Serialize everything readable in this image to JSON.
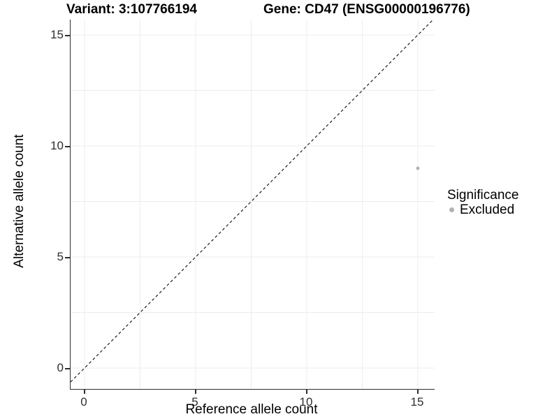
{
  "titles": {
    "variant": "Variant: 3:107766194",
    "gene": "Gene: CD47 (ENSG00000196776)"
  },
  "chart_data": {
    "type": "scatter",
    "xlabel": "Reference allele count",
    "ylabel": "Alternative allele count",
    "xlim": [
      -0.75,
      15.75
    ],
    "ylim": [
      -0.75,
      15.75
    ],
    "x_ticks": [
      0,
      5,
      10,
      15
    ],
    "y_ticks": [
      0,
      5,
      10,
      15
    ],
    "grid": true,
    "grid_step": 2.5,
    "points": [
      {
        "x": 15,
        "y": 9,
        "series": "Excluded"
      }
    ],
    "reference_line": {
      "slope": 1,
      "intercept": 0,
      "linetype": "dashed"
    },
    "legend": {
      "title": "Significance",
      "position": "right",
      "entries": [
        {
          "label": "Excluded",
          "color": "#b3b3b3"
        }
      ]
    }
  },
  "colors": {
    "point": "#b3b3b3",
    "grid": "#ececec",
    "axis_line": "#2e2e2e",
    "reference_line": "#1a1a1a"
  }
}
